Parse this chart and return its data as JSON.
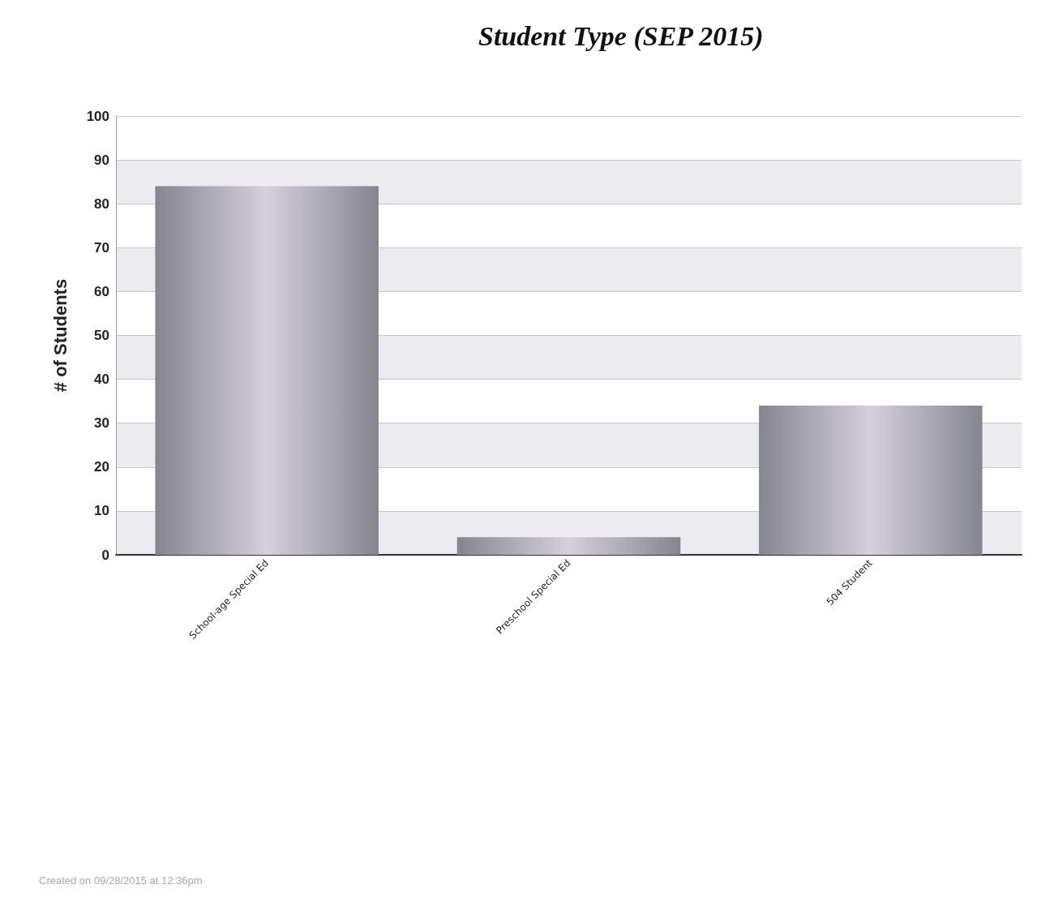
{
  "chart_data": {
    "type": "bar",
    "title": "Student Type (SEP 2015)",
    "ylabel": "# of Students",
    "categories": [
      "School-age Special Ed",
      "Preschool Special Ed",
      "504 Student"
    ],
    "values": [
      84,
      4,
      34
    ],
    "color": "#85858f",
    "ylim": [
      0,
      100
    ],
    "yticks": [
      0,
      10,
      20,
      30,
      40,
      50,
      60,
      70,
      80,
      90,
      100
    ],
    "grid": "y",
    "annotations": [
      "Created on 09/28/2015 at 12:36pm"
    ]
  }
}
